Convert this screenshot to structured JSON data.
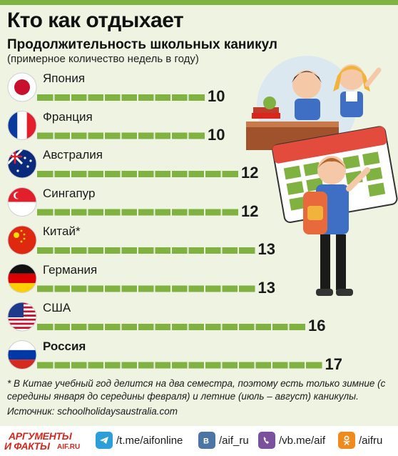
{
  "header": {
    "title": "Кто как отдыхает",
    "subtitle": "Продолжительность школьных каникул",
    "unit_note": "(примерное количество недель в году)"
  },
  "chart_data": {
    "type": "bar",
    "orientation": "horizontal",
    "title": "Продолжительность школьных каникул",
    "ylabel": "(примерное количество недель в году)",
    "categories": [
      "Япония",
      "Франция",
      "Австралия",
      "Сингапур",
      "Китай*",
      "Германия",
      "США",
      "Россия"
    ],
    "values": [
      10,
      10,
      12,
      12,
      13,
      13,
      16,
      17
    ],
    "highlight": "Россия",
    "grid": false,
    "legend": "none",
    "bar_color": "#7fb241",
    "flags": [
      "japan",
      "france",
      "australia",
      "singapore",
      "china",
      "germany",
      "usa",
      "russia"
    ]
  },
  "footnote": "* В Китае учебный год делится на два семестра, поэтому есть только зимние (с середины января до середины февраля) и летние (июль – август) каникулы.",
  "source": "Источник: schoolholidaysaustralia.com",
  "footer": {
    "logo_line1": "АРГУМЕНТЫ",
    "logo_line2": "И ФАКТЫ",
    "logo_domain": "AIF.RU",
    "links": [
      {
        "label": "/t.me/aifonline",
        "icon": "telegram-icon",
        "color": "#2c9fd9"
      },
      {
        "label": "/aif_ru",
        "icon": "vk-icon",
        "color": "#4c75a3"
      },
      {
        "label": "/vb.me/aif",
        "icon": "viber-icon",
        "color": "#7b519d"
      },
      {
        "label": "/aifru",
        "icon": "odnoklassniki-icon",
        "color": "#f08a1c"
      }
    ]
  },
  "colors": {
    "accent": "#7fb241",
    "background": "#eef3e2",
    "brand_red": "#d9261c"
  }
}
